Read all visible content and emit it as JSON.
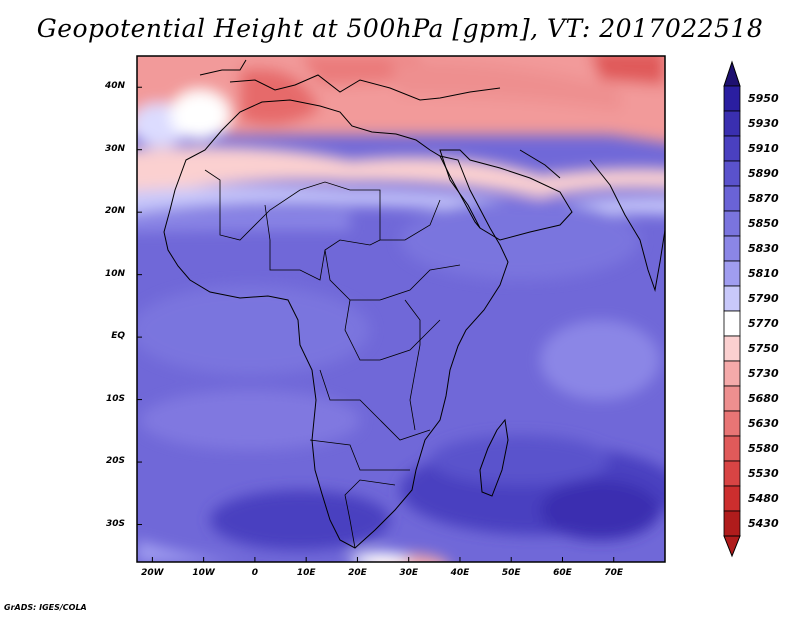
{
  "title": "Geopotential Height at 500hPa [gpm], VT: 2017022518",
  "credit": "GrADS: IGES/COLA",
  "map": {
    "variable": "Geopotential Height at 500hPa",
    "units": "gpm",
    "valid_time": "2017022518",
    "region": "Africa",
    "lon_range": [
      -23,
      80
    ],
    "lat_range": [
      -36,
      45
    ],
    "lat_ticks": [
      {
        "value": 40,
        "label": "40N"
      },
      {
        "value": 30,
        "label": "30N"
      },
      {
        "value": 20,
        "label": "20N"
      },
      {
        "value": 10,
        "label": "10N"
      },
      {
        "value": 0,
        "label": "EQ"
      },
      {
        "value": -10,
        "label": "10S"
      },
      {
        "value": -20,
        "label": "20S"
      },
      {
        "value": -30,
        "label": "30S"
      }
    ],
    "lon_ticks": [
      {
        "value": -20,
        "label": "20W"
      },
      {
        "value": -10,
        "label": "10W"
      },
      {
        "value": 0,
        "label": "0"
      },
      {
        "value": 10,
        "label": "10E"
      },
      {
        "value": 20,
        "label": "20E"
      },
      {
        "value": 30,
        "label": "30E"
      },
      {
        "value": 40,
        "label": "40E"
      },
      {
        "value": 50,
        "label": "50E"
      },
      {
        "value": 60,
        "label": "60E"
      },
      {
        "value": 70,
        "label": "70E"
      }
    ],
    "colorbar": {
      "labels": [
        "5950",
        "5930",
        "5910",
        "5890",
        "5870",
        "5850",
        "5830",
        "5810",
        "5790",
        "5770",
        "5750",
        "5730",
        "5680",
        "5630",
        "5580",
        "5530",
        "5480",
        "5430"
      ],
      "colors": [
        "#2a1ea0",
        "#3a2fb0",
        "#4a40c0",
        "#5a52cc",
        "#6a63d6",
        "#7a74de",
        "#8b86e6",
        "#a09df0",
        "#c8c8fa",
        "#ffffff",
        "#fbd0d0",
        "#f5aaaa",
        "#ee8f8f",
        "#e87575",
        "#e05a5a",
        "#d84444",
        "#cc2e2e",
        "#b01c1c"
      ],
      "top_arrow_color": "#1e1070",
      "bottom_arrow_color": "#b01c1c"
    }
  }
}
